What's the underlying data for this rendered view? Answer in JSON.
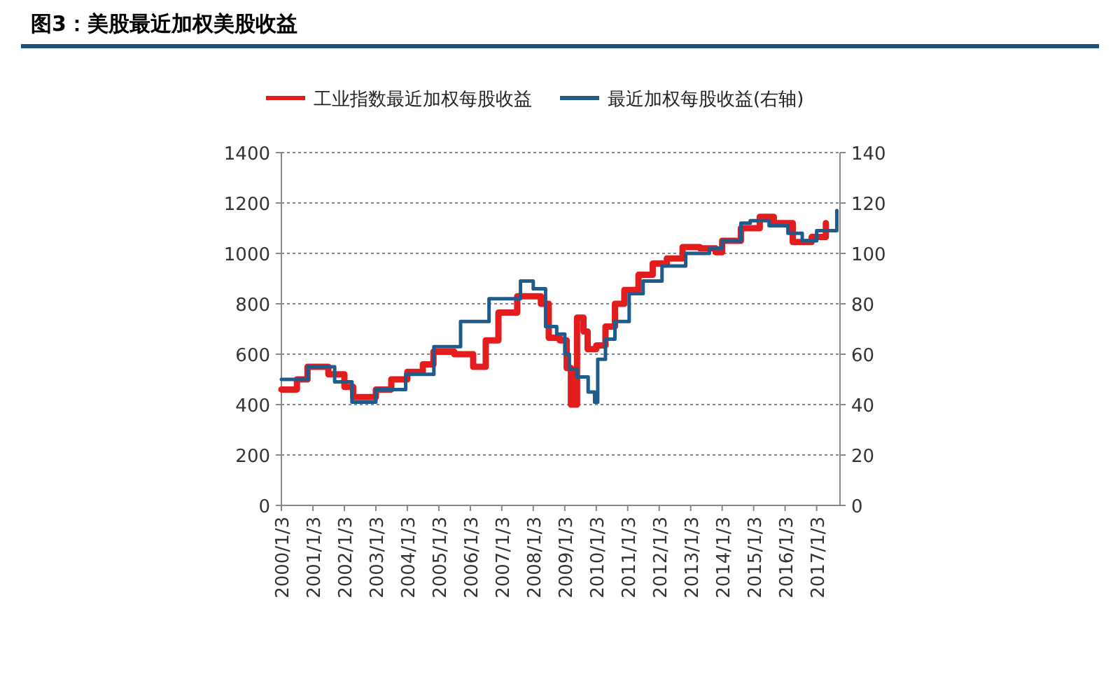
{
  "chart_data": {
    "type": "step",
    "title": "图3：美股最近加权美股收益",
    "xlim": [
      "2000-01-03",
      "2017-10-01"
    ],
    "xticks": [
      {
        "value": "2000-01-03",
        "label": "2000/1/3"
      },
      {
        "value": "2001-01-03",
        "label": "2001/1/3"
      },
      {
        "value": "2002-01-03",
        "label": "2002/1/3"
      },
      {
        "value": "2003-01-03",
        "label": "2003/1/3"
      },
      {
        "value": "2004-01-03",
        "label": "2004/1/3"
      },
      {
        "value": "2005-01-03",
        "label": "2005/1/3"
      },
      {
        "value": "2006-01-03",
        "label": "2006/1/3"
      },
      {
        "value": "2007-01-03",
        "label": "2007/1/3"
      },
      {
        "value": "2008-01-03",
        "label": "2008/1/3"
      },
      {
        "value": "2009-01-03",
        "label": "2009/1/3"
      },
      {
        "value": "2010-01-03",
        "label": "2010/1/3"
      },
      {
        "value": "2011-01-03",
        "label": "2011/1/3"
      },
      {
        "value": "2012-01-03",
        "label": "2012/1/3"
      },
      {
        "value": "2013-01-03",
        "label": "2013/1/3"
      },
      {
        "value": "2014-01-03",
        "label": "2014/1/3"
      },
      {
        "value": "2015-01-03",
        "label": "2015/1/3"
      },
      {
        "value": "2016-01-03",
        "label": "2016/1/3"
      },
      {
        "value": "2017-01-03",
        "label": "2017/1/3"
      }
    ],
    "ylim": [
      0,
      1400
    ],
    "yticks": [
      0,
      200,
      400,
      600,
      800,
      1000,
      1200,
      1400
    ],
    "y2lim": [
      0,
      140
    ],
    "y2ticks": [
      0,
      20,
      40,
      60,
      80,
      100,
      120,
      140
    ],
    "grid": "y",
    "legend": "top",
    "line_style": "solid",
    "series": [
      {
        "name": "工业指数最近加权每股收益",
        "color": "#e31d1d",
        "x": [
          "2000-01-03",
          "2000-07-01",
          "2000-11-01",
          "2001-07-01",
          "2002-01-03",
          "2002-04-15",
          "2003-01-03",
          "2003-07-01",
          "2004-01-03",
          "2004-07-01",
          "2004-11-01",
          "2005-07-01",
          "2006-02-05",
          "2006-07-01",
          "2006-11-25",
          "2007-07-01",
          "2008-04-01",
          "2008-07-01",
          "2008-11-06",
          "2009-01-25",
          "2009-03-15",
          "2009-05-25",
          "2009-08-08",
          "2009-09-25",
          "2010-01-03",
          "2010-04-20",
          "2010-08-08",
          "2010-11-25",
          "2011-05-08",
          "2011-10-20",
          "2012-04-01",
          "2012-10-01",
          "2013-04-20",
          "2013-10-20",
          "2014-01-03",
          "2014-08-08",
          "2015-03-15",
          "2015-08-25",
          "2016-04-01",
          "2016-11-06",
          "2017-04-20"
        ],
        "values": [
          460,
          500,
          550,
          520,
          470,
          430,
          460,
          500,
          530,
          560,
          610,
          600,
          550,
          655,
          765,
          830,
          800,
          665,
          655,
          545,
          400,
          745,
          690,
          620,
          635,
          710,
          800,
          855,
          915,
          960,
          980,
          1025,
          1020,
          1005,
          1050,
          1100,
          1145,
          1120,
          1045,
          1065,
          1120
        ]
      },
      {
        "name": "最近加权每股收益(右轴)",
        "color": "#1f5c8b",
        "axis": "y2",
        "x": [
          "2000-01-03",
          "2000-11-06",
          "2001-09-12",
          "2002-04-01",
          "2003-01-03",
          "2003-12-15",
          "2004-11-06",
          "2005-09-12",
          "2006-08-08",
          "2007-08-08",
          "2008-01-03",
          "2008-05-25",
          "2008-10-01",
          "2009-01-03",
          "2009-02-25",
          "2009-05-25",
          "2009-10-01",
          "2009-12-15",
          "2010-01-20",
          "2010-04-20",
          "2010-08-08",
          "2011-01-20",
          "2011-07-01",
          "2012-02-05",
          "2012-11-06",
          "2013-08-08",
          "2014-01-03",
          "2014-08-08",
          "2014-11-25",
          "2015-07-01",
          "2016-02-05",
          "2016-07-20",
          "2017-01-03",
          "2017-08-25"
        ],
        "values": [
          50,
          55,
          49,
          41,
          46,
          52,
          63,
          73,
          82,
          89,
          86,
          71,
          68,
          60,
          54,
          51,
          45,
          41,
          58,
          66,
          73,
          84,
          89,
          95,
          100,
          102,
          105,
          112,
          113,
          111,
          108,
          105,
          109,
          117
        ]
      }
    ]
  }
}
